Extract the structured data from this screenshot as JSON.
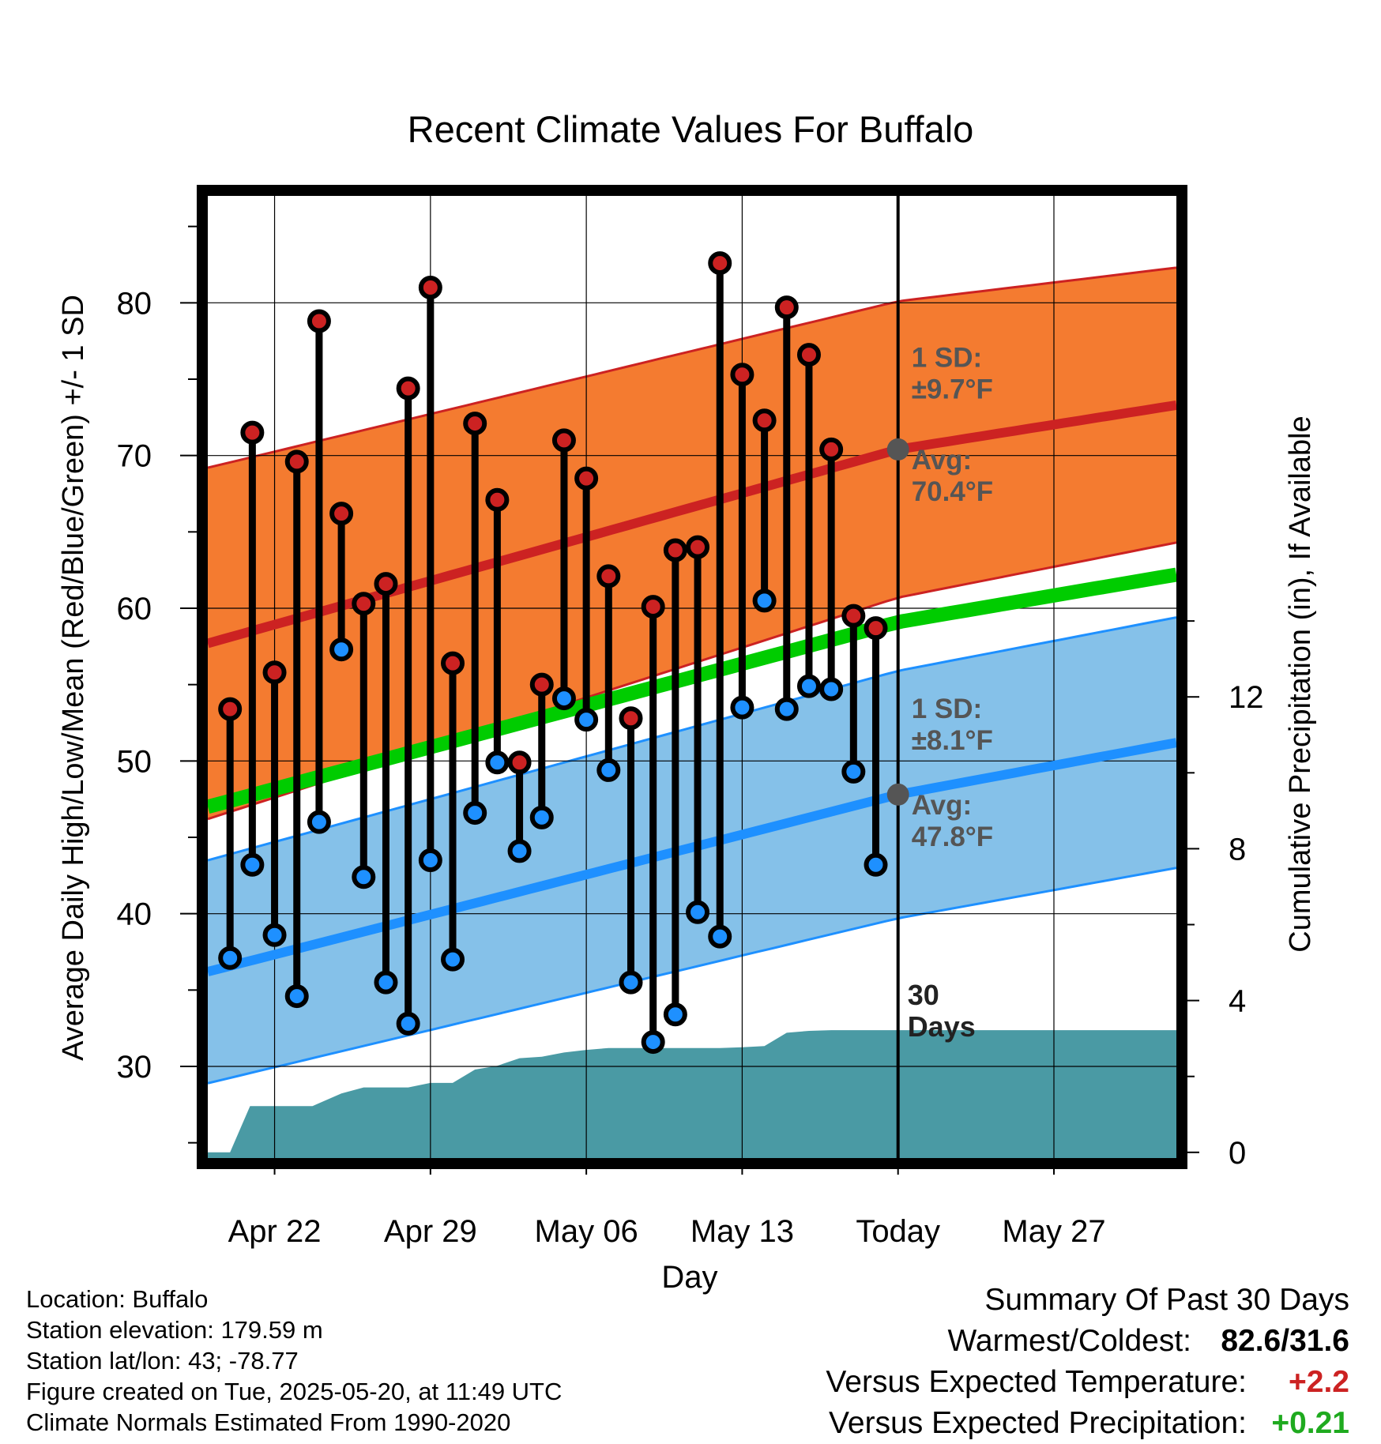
{
  "chart_data": {
    "type": "line",
    "title": "Recent Climate Values For Buffalo",
    "xlabel": "Day",
    "ylabel": "Average Daily High/Low/Mean (Red/Blue/Green) +/- 1 SD",
    "y2label": "Cumulative Precipitation (in), If Available",
    "ylim": [
      24,
      87
    ],
    "y2lim": [
      -0.15,
      25.2
    ],
    "xlim": [
      -1,
      42.5
    ],
    "x_ticks": [
      {
        "x": 2,
        "label": "Apr 22"
      },
      {
        "x": 9,
        "label": "Apr 29"
      },
      {
        "x": 16,
        "label": "May 06"
      },
      {
        "x": 23,
        "label": "May 13"
      },
      {
        "x": 30,
        "label": "Today"
      },
      {
        "x": 37,
        "label": "May 27"
      }
    ],
    "y_ticks": [
      30,
      40,
      50,
      60,
      70,
      80
    ],
    "y2_ticks": [
      0,
      4,
      8,
      12
    ],
    "normals": {
      "x": [
        -1,
        30,
        42.5
      ],
      "high_avg": [
        57.7,
        70.4,
        73.3
      ],
      "high_sd": [
        11.5,
        9.7,
        9.0
      ],
      "low_avg": [
        36.2,
        47.8,
        51.2
      ],
      "low_sd": [
        7.3,
        8.1,
        8.2
      ],
      "mean_avg": [
        47.0,
        59.1,
        62.2
      ]
    },
    "today_x": 30,
    "daily": {
      "x": [
        0,
        1,
        2,
        3,
        4,
        5,
        6,
        7,
        8,
        9,
        10,
        11,
        12,
        13,
        14,
        15,
        16,
        17,
        18,
        19,
        20,
        21,
        22,
        23,
        24,
        25,
        26,
        27,
        28,
        29
      ],
      "high": [
        53.4,
        71.5,
        55.8,
        69.6,
        78.8,
        66.2,
        60.3,
        61.6,
        74.4,
        81.0,
        56.4,
        72.1,
        67.1,
        49.9,
        55.0,
        71.0,
        68.5,
        62.1,
        52.8,
        60.1,
        63.8,
        64.0,
        82.6,
        75.3,
        72.3,
        79.7,
        76.6,
        70.4,
        59.5,
        58.7
      ],
      "low": [
        37.1,
        43.2,
        38.6,
        34.6,
        46.0,
        57.3,
        42.4,
        35.5,
        32.8,
        43.5,
        37.0,
        46.6,
        49.9,
        44.1,
        46.3,
        54.1,
        52.7,
        49.4,
        35.5,
        31.6,
        33.4,
        40.1,
        38.5,
        53.5,
        60.5,
        53.4,
        54.9,
        54.7,
        49.3,
        43.2
      ]
    },
    "precip_cumulative": {
      "x": [
        -1,
        0,
        0.9,
        1,
        3,
        3.7,
        5,
        6,
        8,
        9,
        10,
        11,
        12,
        13,
        14,
        15,
        16,
        17,
        18,
        19,
        20,
        21,
        22,
        23,
        24,
        25,
        26,
        27,
        28,
        29,
        30,
        42.5
      ],
      "values": [
        0,
        0,
        1.22,
        1.22,
        1.22,
        1.22,
        1.55,
        1.71,
        1.71,
        1.83,
        1.83,
        2.18,
        2.28,
        2.48,
        2.52,
        2.63,
        2.7,
        2.75,
        2.75,
        2.75,
        2.75,
        2.75,
        2.75,
        2.77,
        2.8,
        3.15,
        3.2,
        3.22,
        3.22,
        3.22,
        3.22,
        3.22
      ]
    },
    "annotations": {
      "high_sd": [
        "1 SD:",
        "±9.7°F"
      ],
      "high_avg": [
        "Avg:",
        "70.4°F"
      ],
      "low_sd": [
        "1 SD:",
        "±8.1°F"
      ],
      "low_avg": [
        "Avg:",
        "47.8°F"
      ],
      "period": [
        "30",
        "Days"
      ]
    },
    "colors": {
      "high_band": "#f47b30",
      "high_line": "#cc2222",
      "low_band": "#85c1e9",
      "low_line": "#1e90ff",
      "mean_line": "#00cc00",
      "precip": "#4a9aa4",
      "high_dot": "#cc2222",
      "low_dot": "#1e90ff",
      "annotation": "#555555"
    },
    "grid": true
  },
  "info": {
    "location": "Location: Buffalo",
    "elevation": "Station elevation: 179.59 m",
    "latlon": "Station lat/lon: 43; -78.77",
    "created": "Figure created on Tue, 2025-05-20, at 11:49 UTC",
    "normals": "Climate Normals Estimated From 1990-2020"
  },
  "summary": {
    "heading": "Summary Of Past 30 Days",
    "warmest_label": "Warmest/Coldest:",
    "warmest_value": "82.6/31.6",
    "temp_label": "Versus Expected Temperature:",
    "temp_value": "+2.2",
    "precip_label": "Versus Expected Precipitation:",
    "precip_value": "+0.21"
  }
}
